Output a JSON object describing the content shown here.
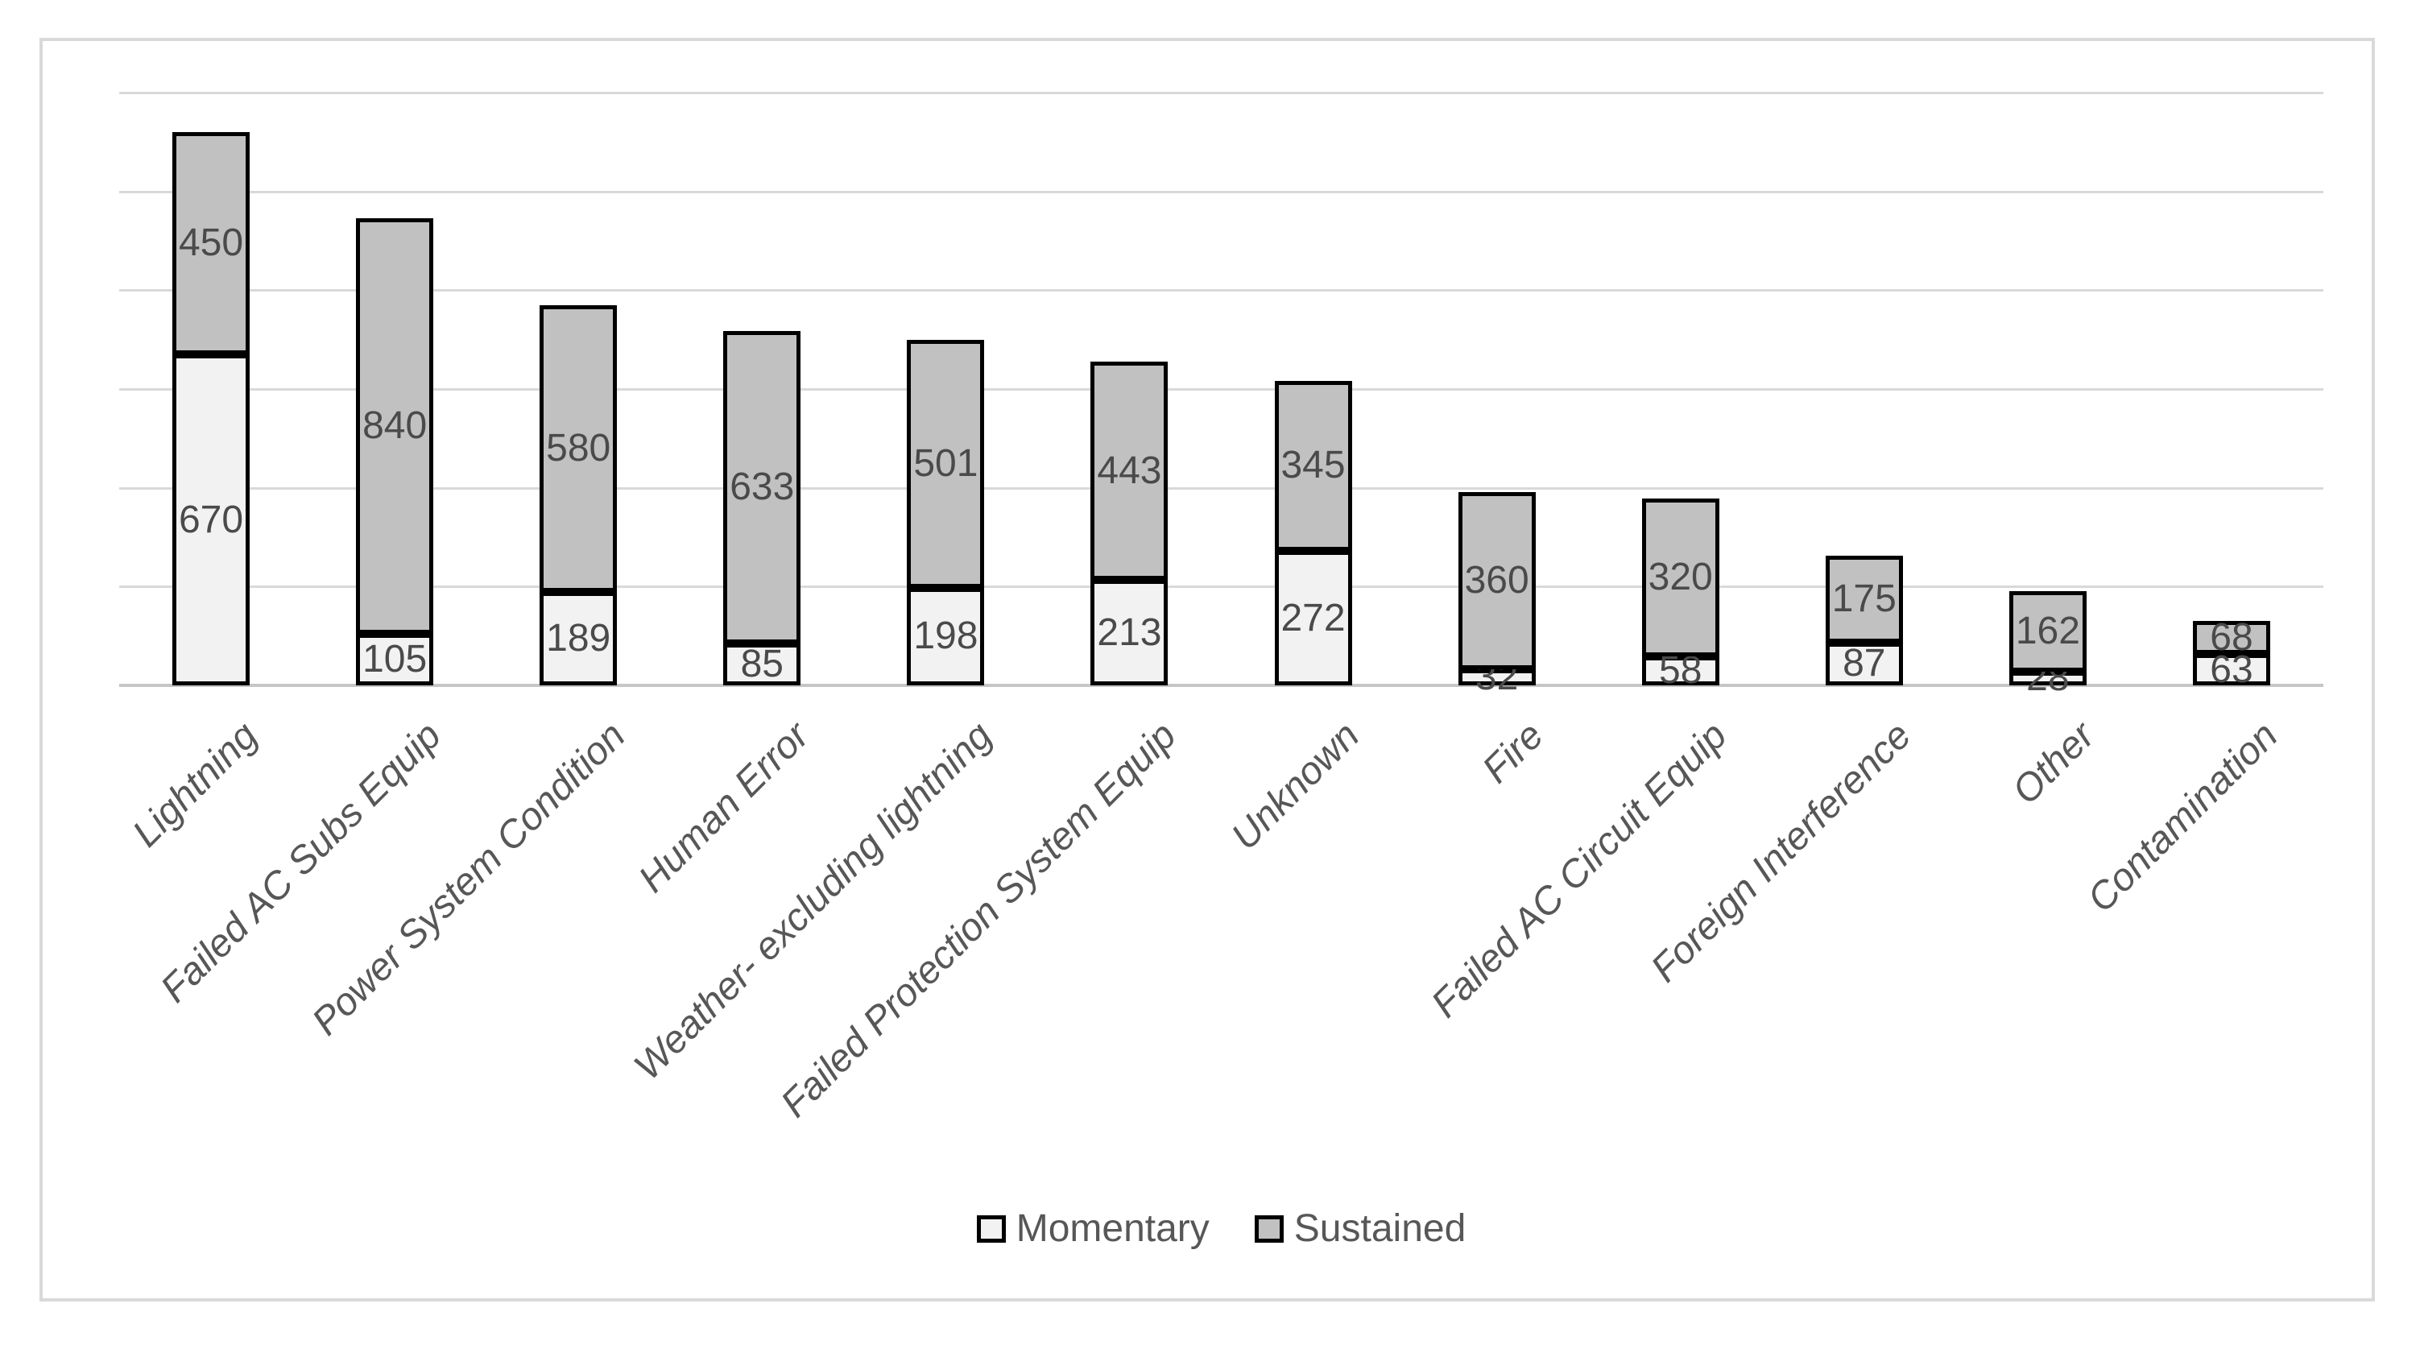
{
  "chart_data": {
    "type": "bar",
    "stacked": true,
    "title": "",
    "xlabel": "",
    "ylabel": "",
    "ylim": [
      0,
      1200
    ],
    "grid_step": 200,
    "grid": true,
    "y_tick_labels_visible": false,
    "legend_position": "bottom-center",
    "categories": [
      "Lightning",
      "Failed AC Subs Equip",
      "Power System Condition",
      "Human Error",
      "Weather- excluding lightning",
      "Failed Protection System Equip",
      "Unknown",
      "Fire",
      "Failed AC Circuit Equip",
      "Foreign Interference",
      "Other",
      "Contamination"
    ],
    "series": [
      {
        "name": "Momentary",
        "fill": "#f2f2f2",
        "values": [
          670,
          105,
          189,
          85,
          198,
          213,
          272,
          32,
          58,
          87,
          28,
          63
        ]
      },
      {
        "name": "Sustained",
        "fill": "#c1c1c1",
        "values": [
          450,
          840,
          580,
          633,
          501,
          443,
          345,
          360,
          320,
          175,
          162,
          68
        ]
      }
    ],
    "bar_border_color": "#000000",
    "gridline_color": "#d9d9d9",
    "axis_line_color": "#c6c6c6",
    "frame_border_color": "#d9d9d9",
    "data_label_color": "#4a4a4a",
    "category_label_color": "#575757"
  }
}
